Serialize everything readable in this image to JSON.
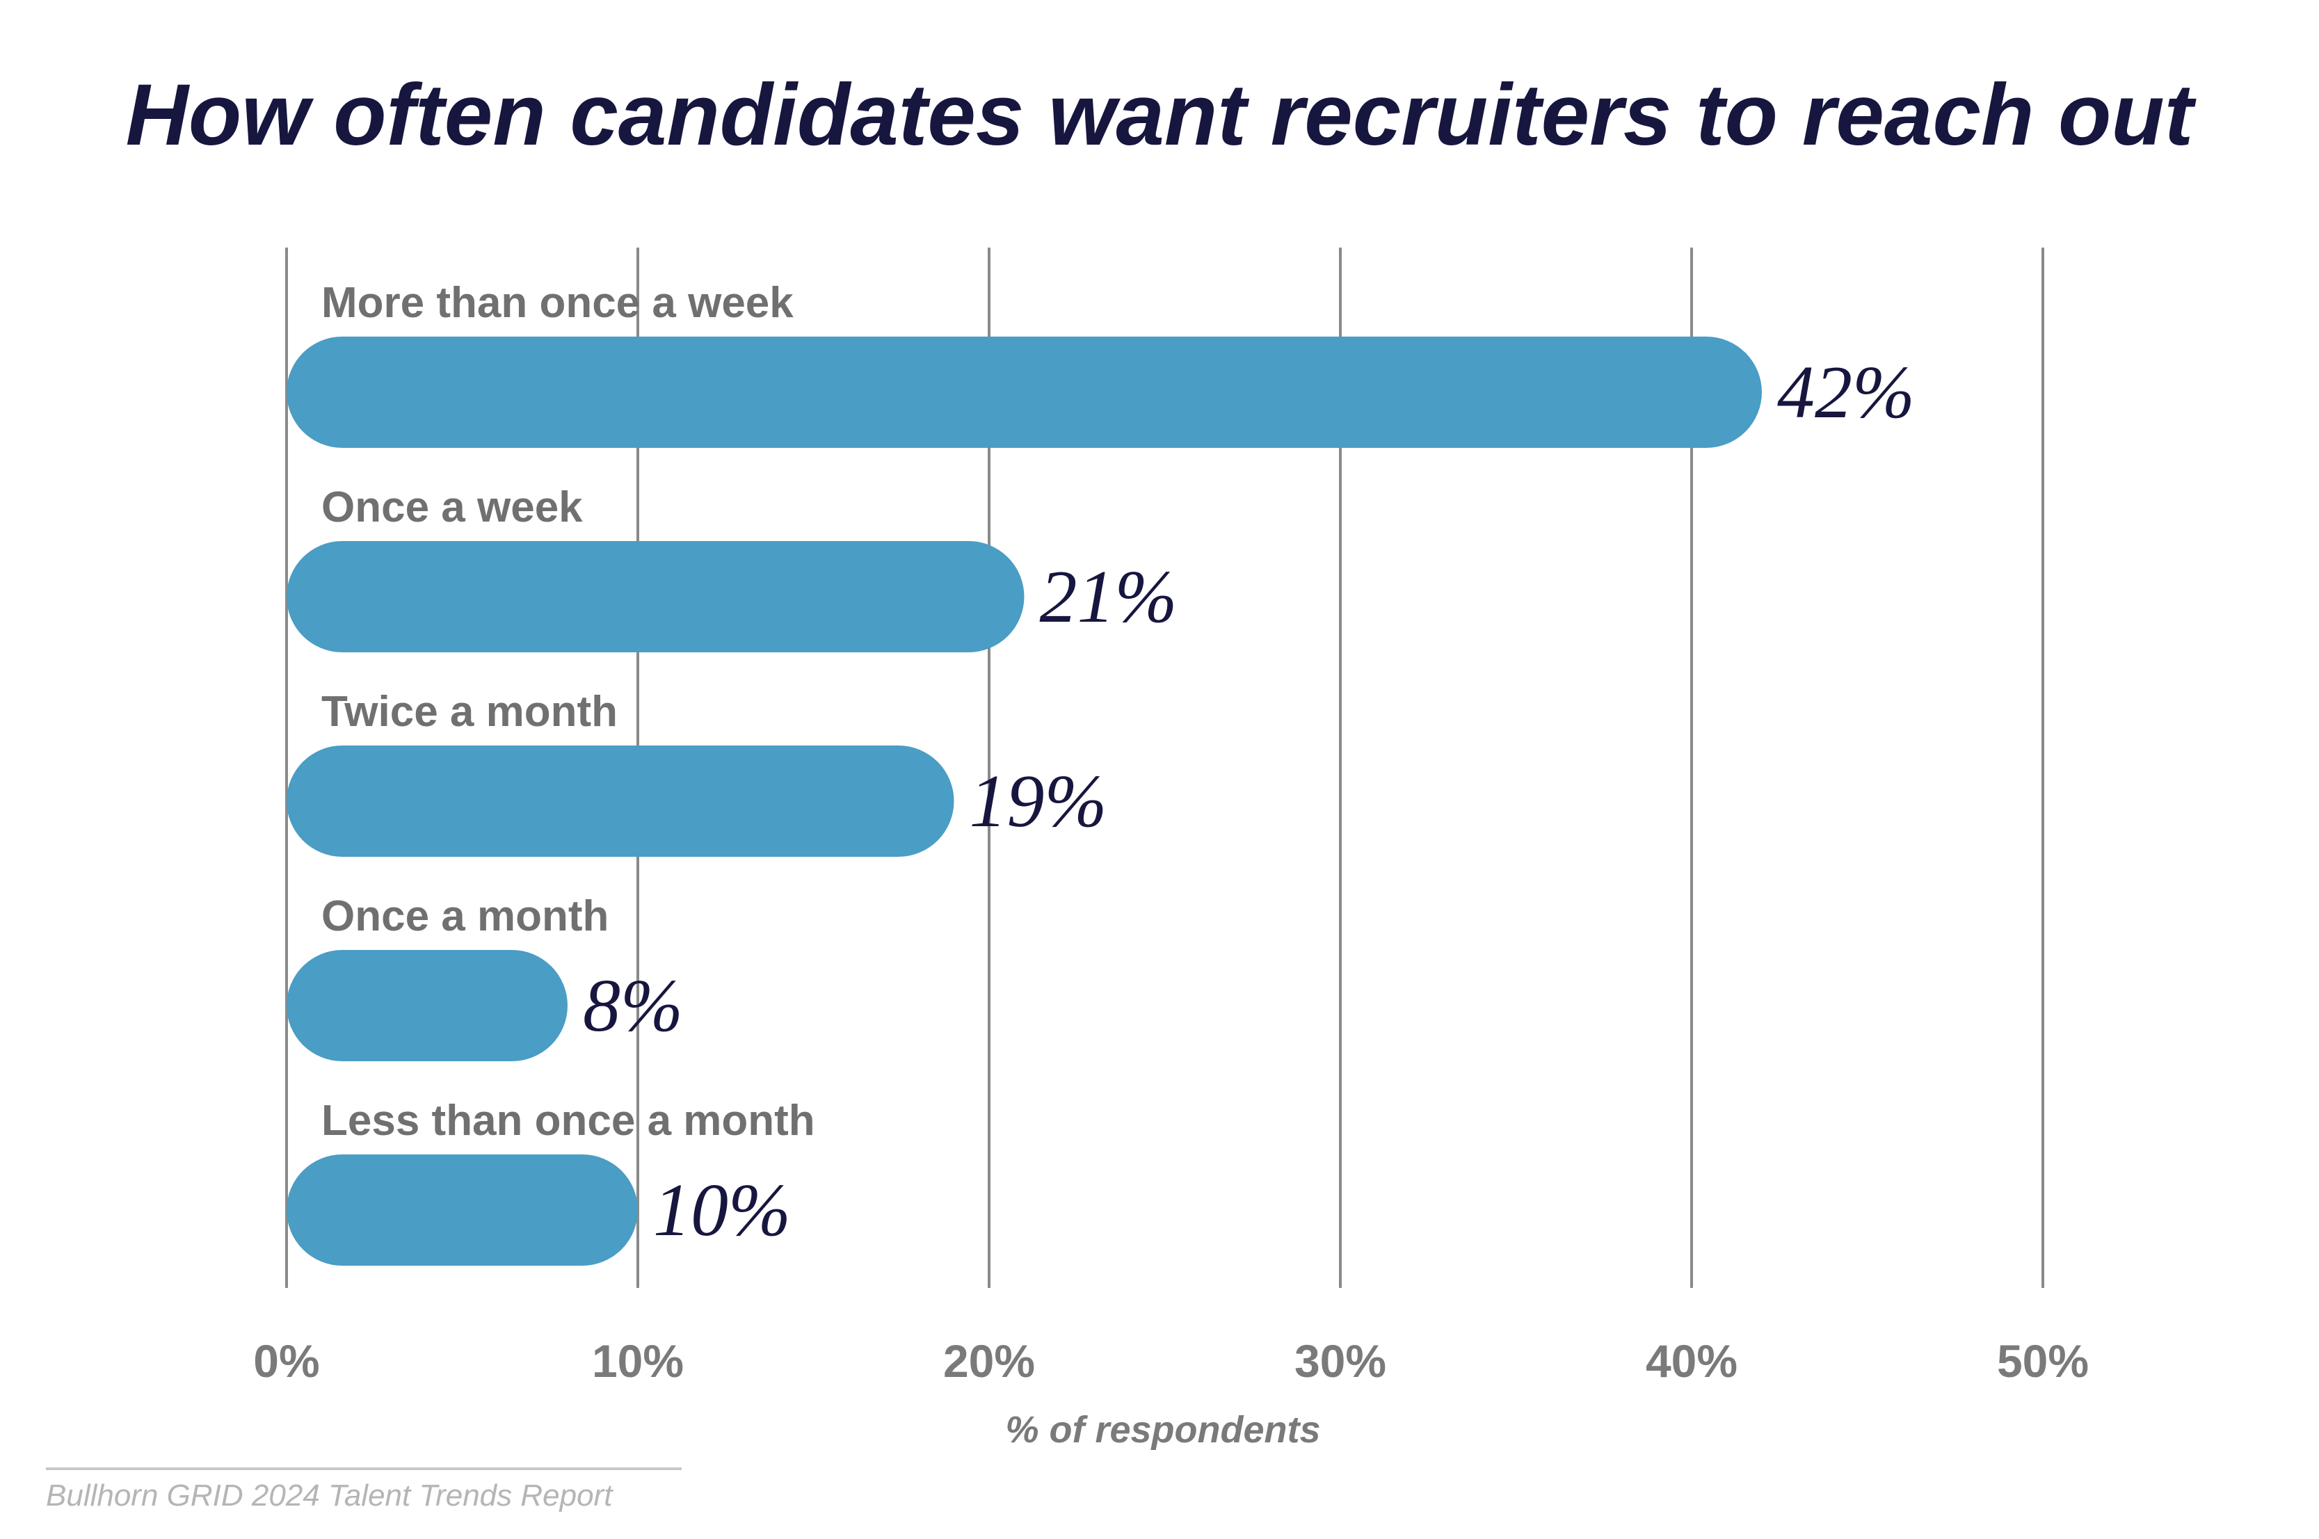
{
  "chart_data": {
    "type": "bar",
    "orientation": "horizontal",
    "title": "How often candidates want recruiters to reach out",
    "categories": [
      "More than once a week",
      "Once a week",
      "Twice a month",
      "Once a month",
      "Less than once a month"
    ],
    "values": [
      42,
      21,
      19,
      8,
      10
    ],
    "value_labels": [
      "42%",
      "21%",
      "19%",
      "8%",
      "10%"
    ],
    "xlim": [
      0,
      50
    ],
    "xticks": [
      0,
      10,
      20,
      30,
      40,
      50
    ],
    "xtick_labels": [
      "0%",
      "10%",
      "20%",
      "30%",
      "40%",
      "50%"
    ],
    "xlabel": "% of respondents",
    "ylabel": "",
    "grid": "vertical",
    "legend": "none"
  },
  "source": "Bullhorn GRID 2024 Talent Trends Report",
  "colors": {
    "bar": "#4a9dc4",
    "title": "#16163f",
    "value_label": "#16163f",
    "category_label": "#707070",
    "tick_label": "#7a7a7a",
    "gridline": "#8a8a8a",
    "source": "#b5b5b5",
    "source_rule": "#c8c8c8"
  }
}
